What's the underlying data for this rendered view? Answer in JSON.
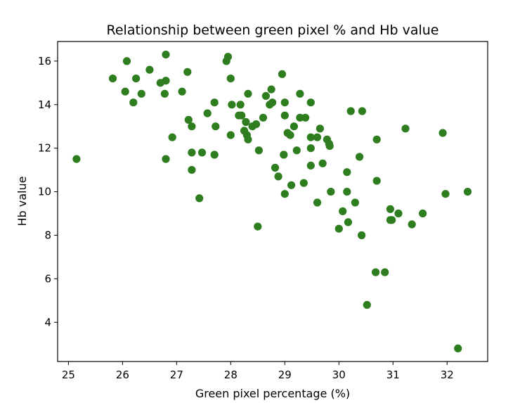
{
  "chart_data": {
    "type": "scatter",
    "title": "Relationship between green pixel % and Hb value",
    "xlabel": "Green pixel percentage (%)",
    "ylabel": "Hb value",
    "xlim": [
      24.8,
      32.75
    ],
    "ylim": [
      2.2,
      16.9
    ],
    "xticks": [
      25,
      26,
      27,
      28,
      29,
      30,
      31,
      32
    ],
    "yticks": [
      4,
      6,
      8,
      10,
      12,
      14,
      16
    ],
    "grid": false,
    "legend": "none",
    "marker_color": "#2e7d1f",
    "points": [
      [
        25.15,
        11.5
      ],
      [
        25.82,
        15.2
      ],
      [
        26.05,
        14.6
      ],
      [
        26.08,
        16.0
      ],
      [
        26.2,
        14.1
      ],
      [
        26.25,
        15.2
      ],
      [
        26.35,
        14.5
      ],
      [
        26.5,
        15.6
      ],
      [
        26.7,
        15.0
      ],
      [
        26.78,
        14.5
      ],
      [
        26.8,
        16.3
      ],
      [
        26.8,
        15.1
      ],
      [
        26.8,
        11.5
      ],
      [
        26.92,
        12.5
      ],
      [
        27.1,
        14.6
      ],
      [
        27.2,
        15.5
      ],
      [
        27.22,
        13.3
      ],
      [
        27.28,
        13.0
      ],
      [
        27.28,
        11.8
      ],
      [
        27.28,
        11.0
      ],
      [
        27.42,
        9.7
      ],
      [
        27.47,
        11.8
      ],
      [
        27.57,
        13.6
      ],
      [
        27.7,
        14.1
      ],
      [
        27.7,
        11.7
      ],
      [
        27.72,
        13.0
      ],
      [
        27.92,
        16.0
      ],
      [
        27.95,
        16.2
      ],
      [
        28.0,
        15.2
      ],
      [
        28.0,
        12.6
      ],
      [
        28.02,
        14.0
      ],
      [
        28.15,
        13.5
      ],
      [
        28.18,
        14.0
      ],
      [
        28.2,
        13.5
      ],
      [
        28.25,
        12.8
      ],
      [
        28.28,
        13.2
      ],
      [
        28.3,
        12.6
      ],
      [
        28.32,
        14.5
      ],
      [
        28.32,
        12.4
      ],
      [
        28.4,
        13.0
      ],
      [
        28.47,
        13.1
      ],
      [
        28.5,
        8.4
      ],
      [
        28.52,
        11.9
      ],
      [
        28.6,
        13.4
      ],
      [
        28.65,
        14.4
      ],
      [
        28.72,
        14.0
      ],
      [
        28.75,
        14.7
      ],
      [
        28.77,
        14.1
      ],
      [
        28.82,
        11.1
      ],
      [
        28.88,
        10.7
      ],
      [
        28.95,
        15.4
      ],
      [
        28.98,
        11.7
      ],
      [
        29.0,
        14.1
      ],
      [
        29.0,
        13.5
      ],
      [
        29.0,
        9.9
      ],
      [
        29.05,
        12.7
      ],
      [
        29.1,
        12.6
      ],
      [
        29.12,
        10.3
      ],
      [
        29.17,
        13.0
      ],
      [
        29.22,
        11.9
      ],
      [
        29.28,
        14.5
      ],
      [
        29.28,
        13.4
      ],
      [
        29.35,
        10.4
      ],
      [
        29.38,
        13.4
      ],
      [
        29.48,
        14.1
      ],
      [
        29.48,
        12.5
      ],
      [
        29.48,
        12.0
      ],
      [
        29.48,
        11.2
      ],
      [
        29.6,
        12.5
      ],
      [
        29.6,
        9.5
      ],
      [
        29.65,
        12.9
      ],
      [
        29.7,
        11.3
      ],
      [
        29.78,
        12.4
      ],
      [
        29.82,
        12.2
      ],
      [
        29.83,
        12.1
      ],
      [
        29.85,
        10.0
      ],
      [
        30.0,
        8.3
      ],
      [
        30.07,
        9.1
      ],
      [
        30.15,
        10.9
      ],
      [
        30.15,
        10.0
      ],
      [
        30.17,
        8.6
      ],
      [
        30.22,
        13.7
      ],
      [
        30.3,
        9.5
      ],
      [
        30.38,
        11.6
      ],
      [
        30.42,
        8.0
      ],
      [
        30.43,
        13.7
      ],
      [
        30.52,
        4.8
      ],
      [
        30.68,
        6.3
      ],
      [
        30.7,
        12.4
      ],
      [
        30.7,
        10.5
      ],
      [
        30.85,
        6.3
      ],
      [
        30.95,
        9.2
      ],
      [
        30.95,
        8.7
      ],
      [
        30.98,
        8.7
      ],
      [
        31.1,
        9.0
      ],
      [
        31.23,
        12.9
      ],
      [
        31.35,
        8.5
      ],
      [
        31.55,
        9.0
      ],
      [
        31.92,
        12.7
      ],
      [
        31.97,
        9.9
      ],
      [
        32.2,
        2.8
      ],
      [
        32.38,
        10.0
      ]
    ]
  }
}
